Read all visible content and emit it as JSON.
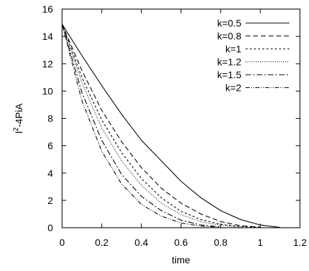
{
  "chart_data": {
    "type": "line",
    "xlabel": "time",
    "ylabel_base": "l",
    "ylabel_sup": "2",
    "ylabel_rest": "-4PiA",
    "xlim": [
      0,
      1.2
    ],
    "ylim": [
      0,
      16
    ],
    "xticks": [
      0,
      0.2,
      0.4,
      0.6,
      0.8,
      1,
      1.2
    ],
    "yticks": [
      0,
      2,
      4,
      6,
      8,
      10,
      12,
      14,
      16
    ],
    "grid": false,
    "legend_position": "top-right",
    "series": [
      {
        "name": "k=0.5",
        "dash": "",
        "x": [
          0,
          0.1,
          0.2,
          0.3,
          0.4,
          0.5,
          0.6,
          0.7,
          0.8,
          0.9,
          1.0,
          1.1
        ],
        "y": [
          14.9,
          12.6,
          10.4,
          8.3,
          6.4,
          4.9,
          3.4,
          2.2,
          1.25,
          0.6,
          0.2,
          0.02
        ]
      },
      {
        "name": "k=0.8",
        "dash": "7,4",
        "x": [
          0,
          0.1,
          0.2,
          0.3,
          0.4,
          0.5,
          0.6,
          0.7,
          0.8,
          0.9,
          1.0
        ],
        "y": [
          14.9,
          11.5,
          8.6,
          6.3,
          4.4,
          2.9,
          1.8,
          1.0,
          0.45,
          0.15,
          0.05
        ]
      },
      {
        "name": "k=1",
        "dash": "3,3",
        "x": [
          0,
          0.1,
          0.2,
          0.3,
          0.4,
          0.5,
          0.6,
          0.7,
          0.8,
          0.9,
          1.0
        ],
        "y": [
          14.9,
          11.0,
          7.9,
          5.5,
          3.6,
          2.2,
          1.2,
          0.6,
          0.25,
          0.08,
          0.02
        ]
      },
      {
        "name": "k=1.2",
        "dash": "1,2",
        "x": [
          0,
          0.1,
          0.2,
          0.3,
          0.4,
          0.5,
          0.6,
          0.7,
          0.8,
          0.9
        ],
        "y": [
          14.9,
          10.6,
          7.3,
          4.9,
          3.1,
          1.8,
          0.95,
          0.45,
          0.17,
          0.05
        ]
      },
      {
        "name": "k=1.5",
        "dash": "8,3,2,3",
        "x": [
          0,
          0.1,
          0.2,
          0.3,
          0.4,
          0.5,
          0.6,
          0.7,
          0.8
        ],
        "y": [
          14.9,
          9.9,
          6.4,
          3.9,
          2.3,
          1.25,
          0.55,
          0.2,
          0.06
        ]
      },
      {
        "name": "k=2",
        "dash": "6,2,1,2,1,2",
        "x": [
          0,
          0.1,
          0.2,
          0.3,
          0.4,
          0.5,
          0.6,
          0.7,
          0.8
        ],
        "y": [
          14.9,
          9.3,
          5.6,
          3.2,
          1.7,
          0.85,
          0.35,
          0.12,
          0.03
        ]
      }
    ]
  }
}
